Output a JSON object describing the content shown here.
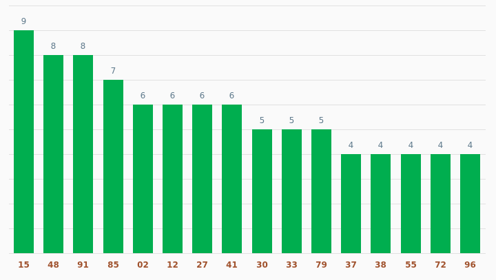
{
  "chart_data": {
    "type": "bar",
    "categories": [
      "15",
      "48",
      "91",
      "85",
      "02",
      "12",
      "27",
      "41",
      "30",
      "33",
      "79",
      "37",
      "38",
      "55",
      "72",
      "96"
    ],
    "values": [
      9,
      8,
      8,
      7,
      6,
      6,
      6,
      6,
      5,
      5,
      5,
      4,
      4,
      4,
      4,
      4
    ],
    "title": "",
    "xlabel": "",
    "ylabel": "",
    "ylim": [
      0,
      10
    ],
    "grid": true,
    "data_labels": true,
    "legend": "none",
    "colors": {
      "bar": "#00ae4f",
      "data_label": "#5f7a8c",
      "tick_label": "#a0522d",
      "grid": "#e1e1e1",
      "background": "#fafafa"
    }
  }
}
